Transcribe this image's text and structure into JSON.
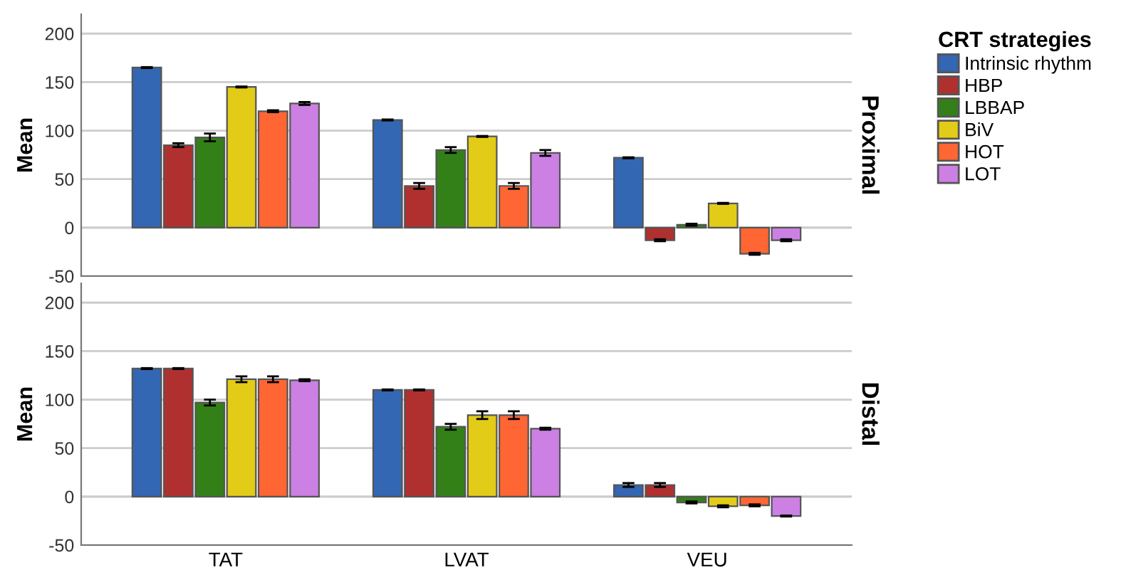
{
  "chart_data": [
    {
      "type": "bar",
      "title": "Proximal",
      "ylabel": "Mean",
      "categories": [
        null,
        null,
        null
      ],
      "ylim": [
        -50,
        220
      ],
      "yticks": [
        -50,
        0,
        50,
        100,
        150,
        200
      ],
      "grid": "y",
      "legend": "right",
      "legend_title": "CRT strategies",
      "tick_labels": "y",
      "series": [
        {
          "name": "Intrinsic rhythm",
          "color": "#3366b3",
          "values": [
            165,
            111,
            72
          ],
          "errors": [
            0.5,
            0.5,
            0.5
          ]
        },
        {
          "name": "HBP",
          "color": "#b03030",
          "values": [
            85,
            43,
            -13
          ],
          "errors": [
            2,
            3,
            1
          ]
        },
        {
          "name": "LBBAP",
          "color": "#338019",
          "values": [
            93,
            80,
            3
          ],
          "errors": [
            4,
            3,
            1
          ]
        },
        {
          "name": "BiV",
          "color": "#e3cc17",
          "values": [
            145,
            94,
            25
          ],
          "errors": [
            0.5,
            0.5,
            0.5
          ]
        },
        {
          "name": "HOT",
          "color": "#ff6633",
          "values": [
            120,
            43,
            -27
          ],
          "errors": [
            1,
            3,
            1
          ]
        },
        {
          "name": "LOT",
          "color": "#cc80e3",
          "values": [
            128,
            77,
            -13
          ],
          "errors": [
            1.5,
            3,
            1
          ]
        }
      ]
    },
    {
      "type": "bar",
      "title": "Distal",
      "ylabel": "Mean",
      "categories": [
        "TAT",
        "LVAT",
        "VEU"
      ],
      "ylim": [
        -50,
        220
      ],
      "yticks": [
        -50,
        0,
        50,
        100,
        150,
        200
      ],
      "grid": "y",
      "series": [
        {
          "color": "#3366b3",
          "values": [
            132,
            110,
            12
          ],
          "errors": [
            0.5,
            0.5,
            2
          ]
        },
        {
          "color": "#b03030",
          "values": [
            132,
            110,
            12
          ],
          "errors": [
            0.5,
            0.5,
            2
          ]
        },
        {
          "color": "#338019",
          "values": [
            97,
            72,
            -6
          ],
          "errors": [
            3,
            3,
            1
          ]
        },
        {
          "color": "#e3cc17",
          "values": [
            121,
            84,
            -10
          ],
          "errors": [
            3,
            4,
            1
          ]
        },
        {
          "color": "#ff6633",
          "values": [
            121,
            84,
            -9
          ],
          "errors": [
            3,
            4,
            1
          ]
        },
        {
          "color": "#cc80e3",
          "values": [
            120,
            70,
            -20
          ],
          "errors": [
            1,
            1,
            0.5
          ]
        }
      ]
    }
  ]
}
